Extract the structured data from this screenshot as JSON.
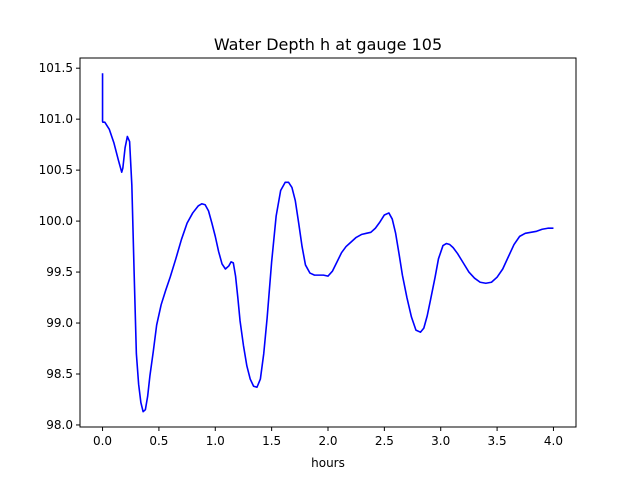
{
  "chart_data": {
    "type": "line",
    "title": "Water Depth h at gauge 105",
    "xlabel": "hours",
    "ylabel": "",
    "xlim": [
      -0.2,
      4.2
    ],
    "ylim": [
      97.98,
      101.6
    ],
    "x_ticks": [
      {
        "value": 0.0,
        "label": "0.0"
      },
      {
        "value": 0.5,
        "label": "0.5"
      },
      {
        "value": 1.0,
        "label": "1.0"
      },
      {
        "value": 1.5,
        "label": "1.5"
      },
      {
        "value": 2.0,
        "label": "2.0"
      },
      {
        "value": 2.5,
        "label": "2.5"
      },
      {
        "value": 3.0,
        "label": "3.0"
      },
      {
        "value": 3.5,
        "label": "3.5"
      },
      {
        "value": 4.0,
        "label": "4.0"
      }
    ],
    "y_ticks": [
      {
        "value": 98.0,
        "label": "98.0"
      },
      {
        "value": 98.5,
        "label": "98.5"
      },
      {
        "value": 99.0,
        "label": "99.0"
      },
      {
        "value": 99.5,
        "label": "99.5"
      },
      {
        "value": 100.0,
        "label": "100.0"
      },
      {
        "value": 100.5,
        "label": "100.5"
      },
      {
        "value": 101.0,
        "label": "101.0"
      },
      {
        "value": 101.5,
        "label": "101.5"
      }
    ],
    "grid": false,
    "series": [
      {
        "color": "#0000ff",
        "x": [
          0.0,
          0.0,
          0.003,
          0.02,
          0.06,
          0.1,
          0.14,
          0.17,
          0.18,
          0.2,
          0.22,
          0.24,
          0.26,
          0.28,
          0.3,
          0.32,
          0.34,
          0.36,
          0.38,
          0.4,
          0.42,
          0.45,
          0.48,
          0.52,
          0.56,
          0.6,
          0.65,
          0.7,
          0.75,
          0.8,
          0.85,
          0.88,
          0.91,
          0.94,
          0.97,
          1.0,
          1.03,
          1.06,
          1.09,
          1.12,
          1.14,
          1.16,
          1.18,
          1.2,
          1.22,
          1.25,
          1.28,
          1.31,
          1.34,
          1.37,
          1.4,
          1.43,
          1.46,
          1.5,
          1.54,
          1.58,
          1.62,
          1.65,
          1.68,
          1.71,
          1.74,
          1.77,
          1.8,
          1.84,
          1.88,
          1.92,
          1.96,
          2.0,
          2.04,
          2.08,
          2.12,
          2.16,
          2.2,
          2.25,
          2.3,
          2.34,
          2.38,
          2.42,
          2.46,
          2.5,
          2.54,
          2.57,
          2.6,
          2.63,
          2.66,
          2.7,
          2.74,
          2.78,
          2.82,
          2.85,
          2.88,
          2.91,
          2.95,
          2.98,
          3.02,
          3.05,
          3.08,
          3.11,
          3.15,
          3.2,
          3.25,
          3.3,
          3.35,
          3.4,
          3.45,
          3.5,
          3.55,
          3.6,
          3.65,
          3.7,
          3.75,
          3.8,
          3.85,
          3.9,
          3.95,
          4.0
        ],
        "y": [
          101.45,
          100.98,
          100.97,
          100.97,
          100.9,
          100.77,
          100.6,
          100.48,
          100.52,
          100.72,
          100.83,
          100.78,
          100.35,
          99.5,
          98.7,
          98.4,
          98.22,
          98.13,
          98.15,
          98.28,
          98.48,
          98.72,
          98.98,
          99.18,
          99.32,
          99.45,
          99.63,
          99.82,
          99.98,
          100.08,
          100.15,
          100.17,
          100.16,
          100.1,
          99.98,
          99.85,
          99.7,
          99.58,
          99.53,
          99.56,
          99.6,
          99.59,
          99.46,
          99.25,
          99.02,
          98.78,
          98.58,
          98.45,
          98.38,
          98.37,
          98.45,
          98.7,
          99.05,
          99.6,
          100.05,
          100.3,
          100.38,
          100.38,
          100.33,
          100.2,
          99.98,
          99.75,
          99.57,
          99.49,
          99.47,
          99.47,
          99.47,
          99.46,
          99.51,
          99.6,
          99.69,
          99.75,
          99.79,
          99.84,
          99.87,
          99.88,
          99.89,
          99.93,
          99.99,
          100.06,
          100.08,
          100.02,
          99.88,
          99.68,
          99.47,
          99.25,
          99.06,
          98.93,
          98.91,
          98.95,
          99.07,
          99.23,
          99.45,
          99.63,
          99.76,
          99.78,
          99.77,
          99.74,
          99.68,
          99.59,
          99.5,
          99.44,
          99.4,
          99.39,
          99.4,
          99.45,
          99.53,
          99.65,
          99.77,
          99.85,
          99.88,
          99.89,
          99.9,
          99.92,
          99.93,
          99.93
        ]
      }
    ]
  }
}
